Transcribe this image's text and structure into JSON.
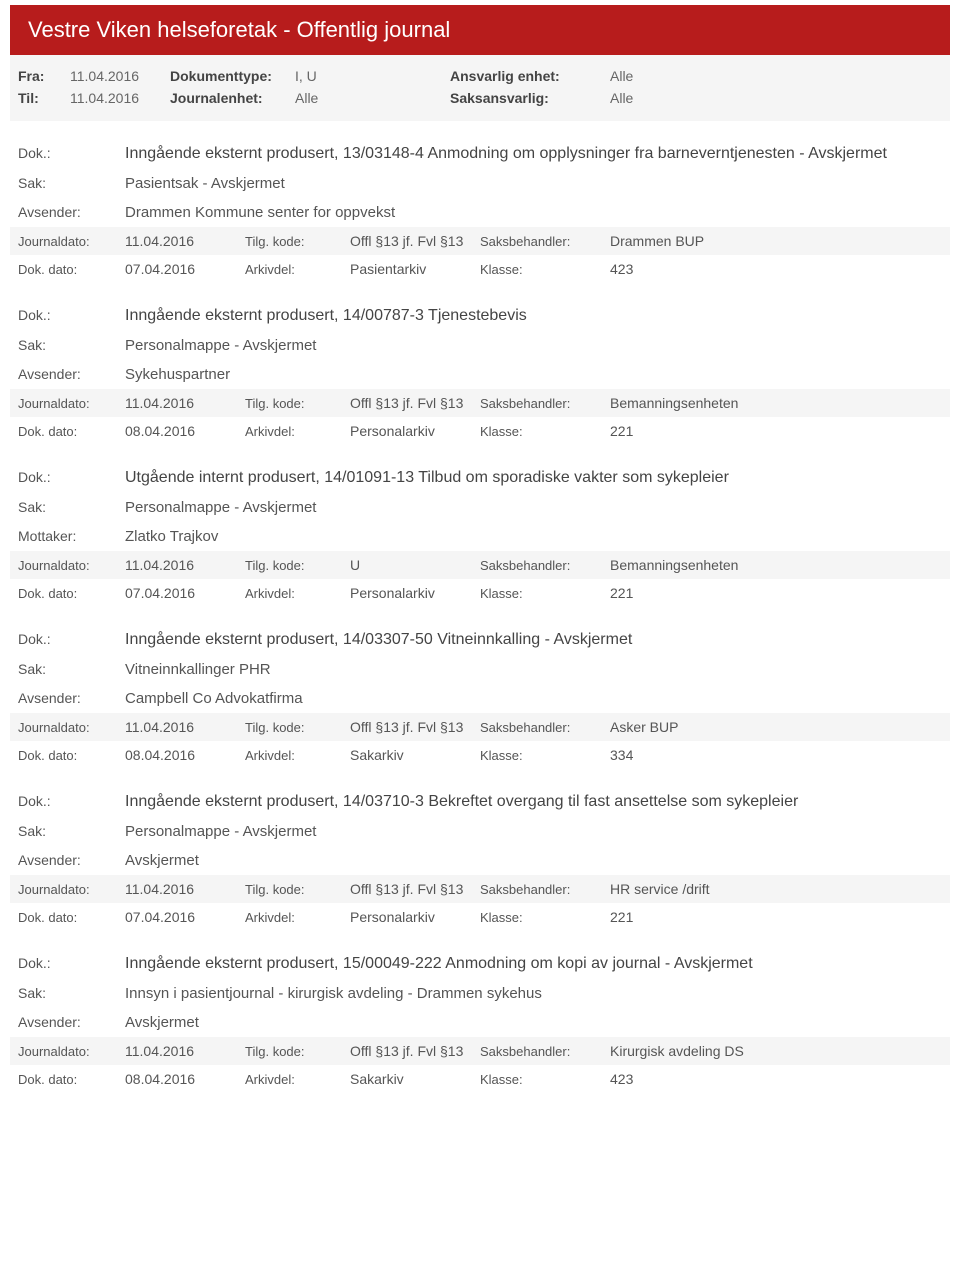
{
  "header": {
    "title": "Vestre Viken helseforetak - Offentlig journal"
  },
  "filters": {
    "fra_label": "Fra:",
    "fra_value": "11.04.2016",
    "til_label": "Til:",
    "til_value": "11.04.2016",
    "doktype_label": "Dokumenttype:",
    "doktype_value": "I, U",
    "journalenhet_label": "Journalenhet:",
    "journalenhet_value": "Alle",
    "ansvarlig_label": "Ansvarlig enhet:",
    "ansvarlig_value": "Alle",
    "saksansvarlig_label": "Saksansvarlig:",
    "saksansvarlig_value": "Alle"
  },
  "labels": {
    "dok": "Dok.:",
    "sak": "Sak:",
    "avsender": "Avsender:",
    "mottaker": "Mottaker:",
    "journaldato": "Journaldato:",
    "tilgkode": "Tilg. kode:",
    "saksbehandler": "Saksbehandler:",
    "dokdato": "Dok. dato:",
    "arkivdel": "Arkivdel:",
    "klasse": "Klasse:"
  },
  "entries": [
    {
      "dok": "Inngående eksternt produsert, 13/03148-4 Anmodning om opplysninger fra barneverntjenesten - Avskjermet",
      "sak": "Pasientsak - Avskjermet",
      "party_label": "Avsender:",
      "party": "Drammen Kommune  senter for oppvekst",
      "journaldato": "11.04.2016",
      "tilgkode": "Offl §13 jf. Fvl §13",
      "saksbehandler": "Drammen BUP",
      "dokdato": "07.04.2016",
      "arkivdel": "Pasientarkiv",
      "klasse": "423"
    },
    {
      "dok": "Inngående eksternt produsert, 14/00787-3 Tjenestebevis",
      "sak": "Personalmappe - Avskjermet",
      "party_label": "Avsender:",
      "party": "Sykehuspartner",
      "journaldato": "11.04.2016",
      "tilgkode": "Offl §13 jf. Fvl §13",
      "saksbehandler": "Bemanningsenheten",
      "dokdato": "08.04.2016",
      "arkivdel": "Personalarkiv",
      "klasse": "221"
    },
    {
      "dok": "Utgående internt produsert, 14/01091-13 Tilbud om sporadiske vakter som sykepleier",
      "sak": "Personalmappe - Avskjermet",
      "party_label": "Mottaker:",
      "party": "Zlatko Trajkov",
      "journaldato": "11.04.2016",
      "tilgkode": "U",
      "saksbehandler": "Bemanningsenheten",
      "dokdato": "07.04.2016",
      "arkivdel": "Personalarkiv",
      "klasse": "221"
    },
    {
      "dok": "Inngående eksternt produsert, 14/03307-50 Vitneinnkalling - Avskjermet",
      "sak": "Vitneinnkallinger PHR",
      "party_label": "Avsender:",
      "party": "Campbell  Co Advokatfirma",
      "journaldato": "11.04.2016",
      "tilgkode": "Offl §13 jf. Fvl §13",
      "saksbehandler": "Asker BUP",
      "dokdato": "08.04.2016",
      "arkivdel": "Sakarkiv",
      "klasse": "334"
    },
    {
      "dok": "Inngående eksternt produsert, 14/03710-3 Bekreftet overgang til fast ansettelse som sykepleier",
      "sak": "Personalmappe - Avskjermet",
      "party_label": "Avsender:",
      "party": "Avskjermet",
      "journaldato": "11.04.2016",
      "tilgkode": "Offl §13 jf. Fvl §13",
      "saksbehandler": "HR service /drift",
      "dokdato": "07.04.2016",
      "arkivdel": "Personalarkiv",
      "klasse": "221"
    },
    {
      "dok": "Inngående eksternt produsert, 15/00049-222 Anmodning om kopi av journal - Avskjermet",
      "sak": "Innsyn i pasientjournal - kirurgisk avdeling - Drammen sykehus",
      "party_label": "Avsender:",
      "party": "Avskjermet",
      "journaldato": "11.04.2016",
      "tilgkode": "Offl §13 jf. Fvl §13",
      "saksbehandler": "Kirurgisk avdeling DS",
      "dokdato": "08.04.2016",
      "arkivdel": "Sakarkiv",
      "klasse": "423"
    }
  ]
}
